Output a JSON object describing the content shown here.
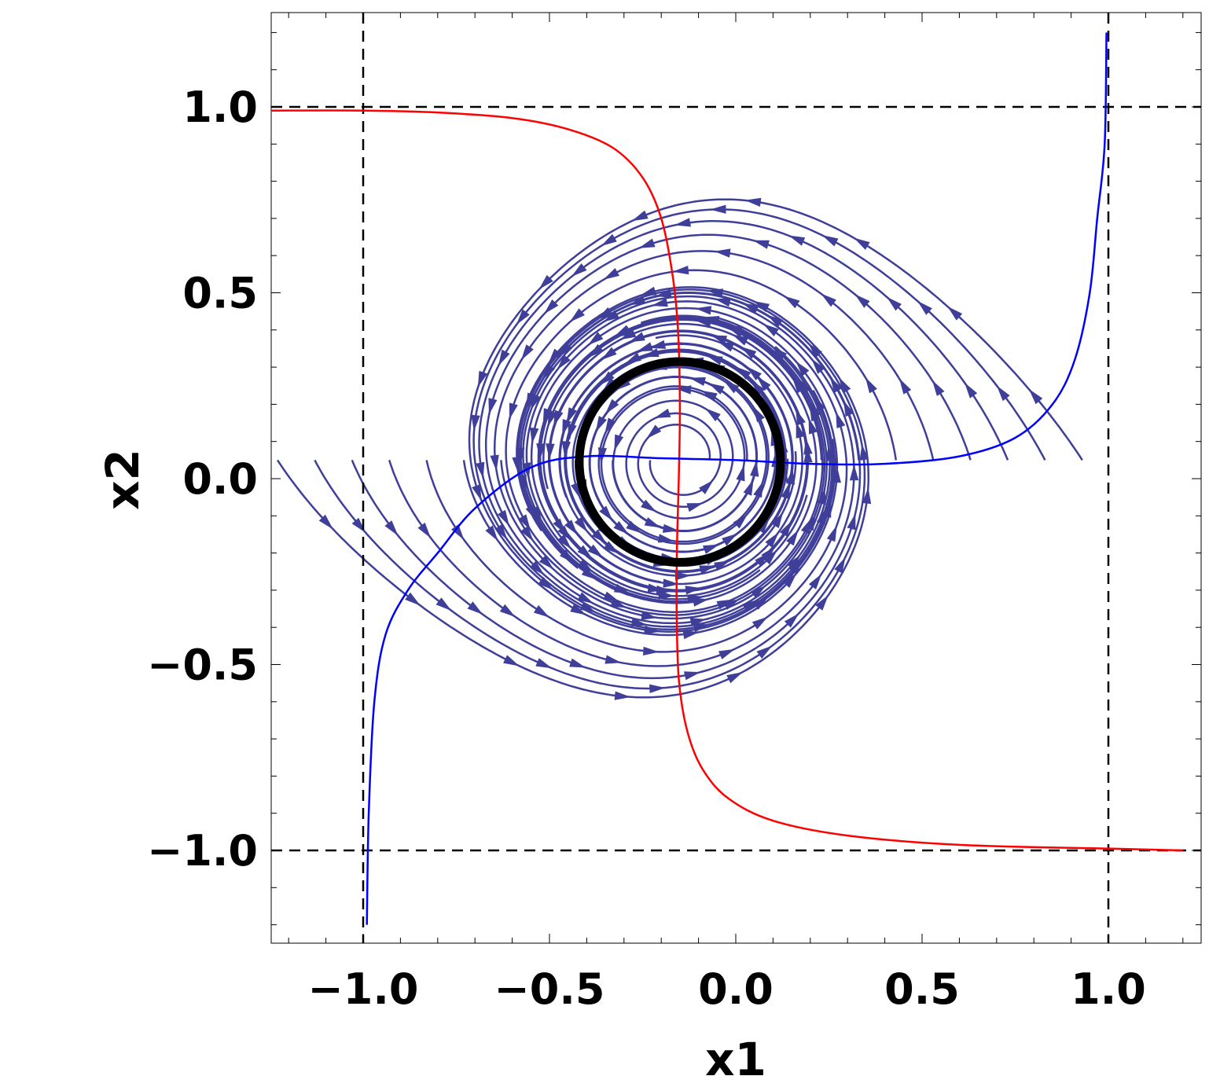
{
  "chart_data": {
    "type": "streamplot",
    "xlabel": "x1",
    "ylabel": "x2",
    "xlim": [
      -1.25,
      1.25
    ],
    "ylim": [
      -1.25,
      1.25
    ],
    "xticks": [
      {
        "value": -1.0,
        "label": "−1.0"
      },
      {
        "value": -0.5,
        "label": "−0.5"
      },
      {
        "value": 0.0,
        "label": "0.0"
      },
      {
        "value": 0.5,
        "label": "0.5"
      },
      {
        "value": 1.0,
        "label": "1.0"
      }
    ],
    "yticks": [
      {
        "value": -1.0,
        "label": "−1.0"
      },
      {
        "value": -0.5,
        "label": "−0.5"
      },
      {
        "value": 0.0,
        "label": "0.0"
      },
      {
        "value": 0.5,
        "label": "0.5"
      },
      {
        "value": 1.0,
        "label": "1.0"
      }
    ],
    "minor_tick_step": 0.1,
    "grid": false,
    "colors": {
      "streamlines": "#3f3f9a",
      "nullcline_red": "#ff0000",
      "nullcline_blue": "#0000ff",
      "limit_cycle": "#000000",
      "reference_lines": "#000000"
    },
    "reference_lines": {
      "vertical_x": [
        -1.0,
        1.0
      ],
      "horizontal_y": [
        -1.0,
        1.0
      ]
    },
    "equilibrium": {
      "x1": -0.15,
      "x2": 0.05
    },
    "limit_cycle": {
      "center": [
        -0.15,
        0.045
      ],
      "radius_x1": 0.27,
      "radius_x2": 0.27
    },
    "red_curve": [
      [
        -1.25,
        0.99
      ],
      [
        -1.0,
        0.99
      ],
      [
        -0.8,
        0.985
      ],
      [
        -0.6,
        0.97
      ],
      [
        -0.45,
        0.94
      ],
      [
        -0.33,
        0.89
      ],
      [
        -0.25,
        0.81
      ],
      [
        -0.2,
        0.7
      ],
      [
        -0.17,
        0.55
      ],
      [
        -0.155,
        0.4
      ],
      [
        -0.15,
        0.2
      ],
      [
        -0.153,
        0.0
      ],
      [
        -0.158,
        -0.2
      ],
      [
        -0.158,
        -0.4
      ],
      [
        -0.152,
        -0.55
      ],
      [
        -0.13,
        -0.68
      ],
      [
        -0.09,
        -0.78
      ],
      [
        -0.02,
        -0.86
      ],
      [
        0.1,
        -0.92
      ],
      [
        0.3,
        -0.96
      ],
      [
        0.6,
        -0.985
      ],
      [
        1.0,
        -0.995
      ],
      [
        1.2,
        -1.0
      ]
    ],
    "blue_curve": [
      [
        -0.99,
        -1.2
      ],
      [
        -0.985,
        -0.9
      ],
      [
        -0.97,
        -0.6
      ],
      [
        -0.94,
        -0.42
      ],
      [
        -0.88,
        -0.3
      ],
      [
        -0.8,
        -0.2
      ],
      [
        -0.7,
        -0.08
      ],
      [
        -0.55,
        0.03
      ],
      [
        -0.4,
        0.06
      ],
      [
        -0.2,
        0.055
      ],
      [
        0.0,
        0.05
      ],
      [
        0.2,
        0.04
      ],
      [
        0.4,
        0.04
      ],
      [
        0.6,
        0.06
      ],
      [
        0.75,
        0.11
      ],
      [
        0.85,
        0.2
      ],
      [
        0.91,
        0.32
      ],
      [
        0.95,
        0.5
      ],
      [
        0.97,
        0.7
      ],
      [
        0.99,
        0.9
      ],
      [
        0.995,
        1.2
      ]
    ],
    "flow_rotation": "counterclockwise"
  }
}
